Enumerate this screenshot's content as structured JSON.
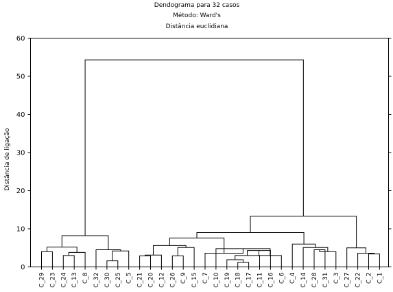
{
  "chart_data": {
    "type": "dendrogram",
    "title_lines": [
      "Dendograma para 32 casos",
      "Método: Ward's",
      "Distância euclidiana"
    ],
    "ylabel": "Distância de ligação",
    "xlabel": "",
    "ylim": [
      0,
      60
    ],
    "yticks": [
      0,
      10,
      20,
      30,
      40,
      50,
      60
    ],
    "grid": false,
    "leaves": [
      "C_29",
      "C_23",
      "C_24",
      "C_13",
      "C_8",
      "C_32",
      "C_30",
      "C_25",
      "C_5",
      "C_21",
      "C_20",
      "C_12",
      "C_26",
      "C_9",
      "C_15",
      "C_7",
      "C_10",
      "C_19",
      "C_18",
      "C_17",
      "C_11",
      "C_16",
      "C_6",
      "C_4",
      "C_14",
      "C_28",
      "C_31",
      "C_3",
      "C_27",
      "C_22",
      "C_2",
      "C_1"
    ],
    "merges": [
      {
        "a": "C_29",
        "b": "C_23",
        "height": 4.0
      },
      {
        "a": "C_24",
        "b": "C_13",
        "height": 3.0
      },
      {
        "a": "m2",
        "b": "C_8",
        "height": 3.8
      },
      {
        "a": "m1",
        "b": "m3",
        "height": 5.2
      },
      {
        "a": "C_30",
        "b": "C_25",
        "height": 1.6
      },
      {
        "a": "m5",
        "b": "C_5",
        "height": 4.2
      },
      {
        "a": "C_32",
        "b": "m6",
        "height": 4.5
      },
      {
        "a": "m4",
        "b": "m7",
        "height": 8.2
      },
      {
        "a": "C_21",
        "b": "C_20",
        "height": 2.9
      },
      {
        "a": "m9",
        "b": "C_12",
        "height": 3.1
      },
      {
        "a": "C_26",
        "b": "C_9",
        "height": 2.9
      },
      {
        "a": "m11",
        "b": "C_15",
        "height": 5.1
      },
      {
        "a": "m10",
        "b": "m12",
        "height": 5.6
      },
      {
        "a": "C_18",
        "b": "C_17",
        "height": 1.2
      },
      {
        "a": "C_19",
        "b": "m14",
        "height": 1.9
      },
      {
        "a": "m15",
        "b": "C_11",
        "height": 3.0
      },
      {
        "a": "m16",
        "b": "C_16",
        "height": 4.3
      },
      {
        "a": "m17",
        "b": "C_6",
        "height": 3.0
      },
      {
        "a": "C_10",
        "b": "m18",
        "height": 4.8
      },
      {
        "a": "C_7",
        "b": "m19",
        "height": 3.6
      },
      {
        "a": "m13",
        "b": "m20",
        "height": 7.6
      },
      {
        "a": "C_28",
        "b": "C_31",
        "height": 4.5
      },
      {
        "a": "m22",
        "b": "C_3",
        "height": 4.0
      },
      {
        "a": "C_14",
        "b": "m23",
        "height": 5.1
      },
      {
        "a": "C_4",
        "b": "m24",
        "height": 6.0
      },
      {
        "a": "m21",
        "b": "m25",
        "height": 9.0
      },
      {
        "a": "C_2",
        "b": "C_1",
        "height": 3.4
      },
      {
        "a": "C_22",
        "b": "m27",
        "height": 3.6
      },
      {
        "a": "C_27",
        "b": "m28",
        "height": 5.0
      },
      {
        "a": "m26",
        "b": "m29",
        "height": 13.3
      },
      {
        "a": "m8",
        "b": "m30",
        "height": 54.3
      }
    ]
  }
}
